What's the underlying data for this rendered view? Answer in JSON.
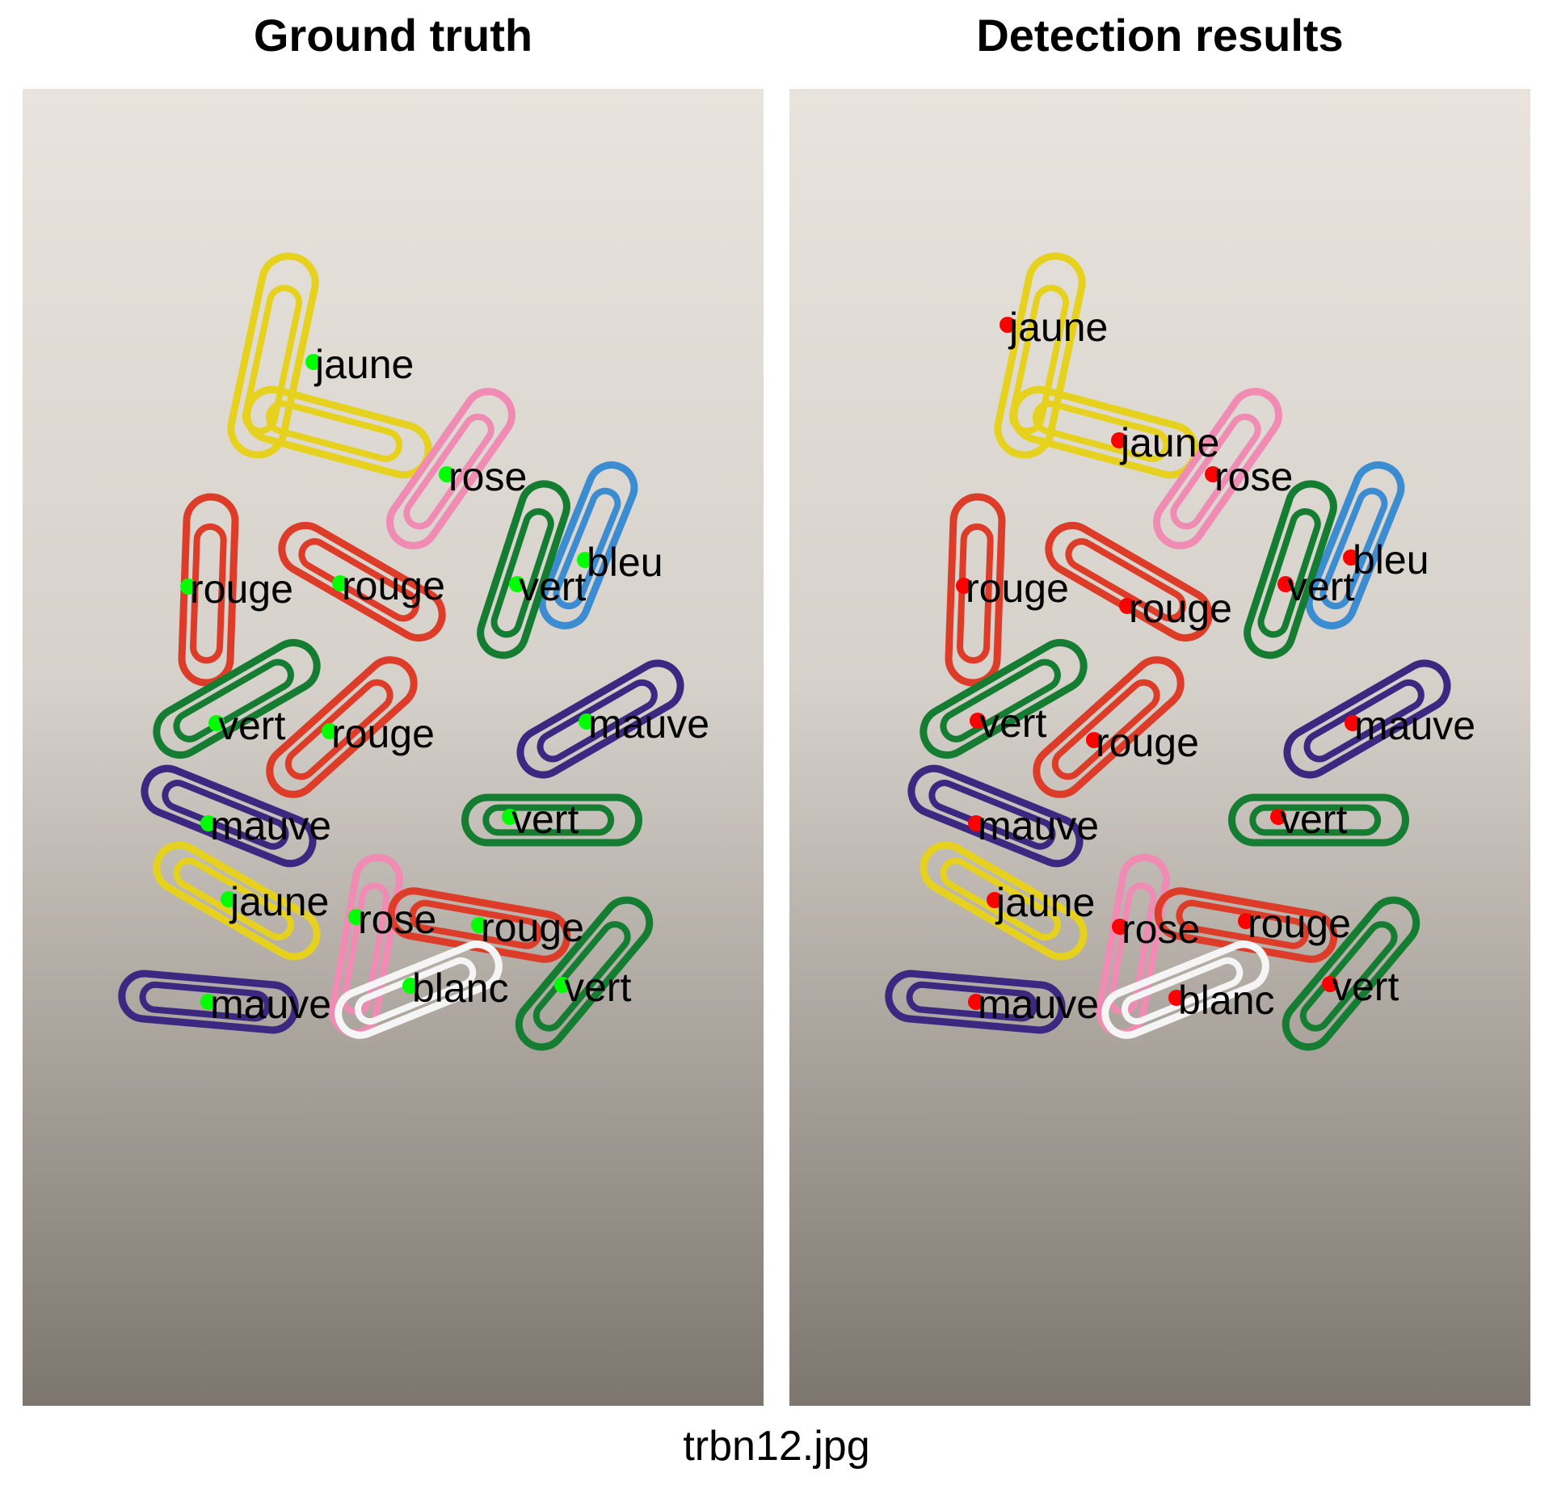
{
  "left_title": "Ground truth",
  "right_title": "Detection results",
  "caption": "trbn12.jpg",
  "colors": {
    "ground_truth_marker": "#00ff00",
    "detection_marker": "#ff0000",
    "jaune": "#e6d21e",
    "rose": "#f08cb4",
    "bleu": "#3c8cd2",
    "rouge": "#dc3c28",
    "vert": "#147d32",
    "mauve": "#3c2880",
    "blanc": "#f5f5f5"
  },
  "ground_truth_labels": [
    "jaune",
    "rose",
    "bleu",
    "rouge",
    "rouge",
    "vert",
    "vert",
    "rouge",
    "mauve",
    "mauve",
    "vert",
    "jaune",
    "rose",
    "rouge",
    "mauve",
    "blanc",
    "vert"
  ],
  "detection_labels": [
    "jaune",
    "jaune",
    "rose",
    "bleu",
    "rouge",
    "rouge",
    "vert",
    "vert",
    "rouge",
    "mauve",
    "mauve",
    "vert",
    "jaune",
    "rose",
    "rouge",
    "mauve",
    "blanc",
    "vert"
  ]
}
